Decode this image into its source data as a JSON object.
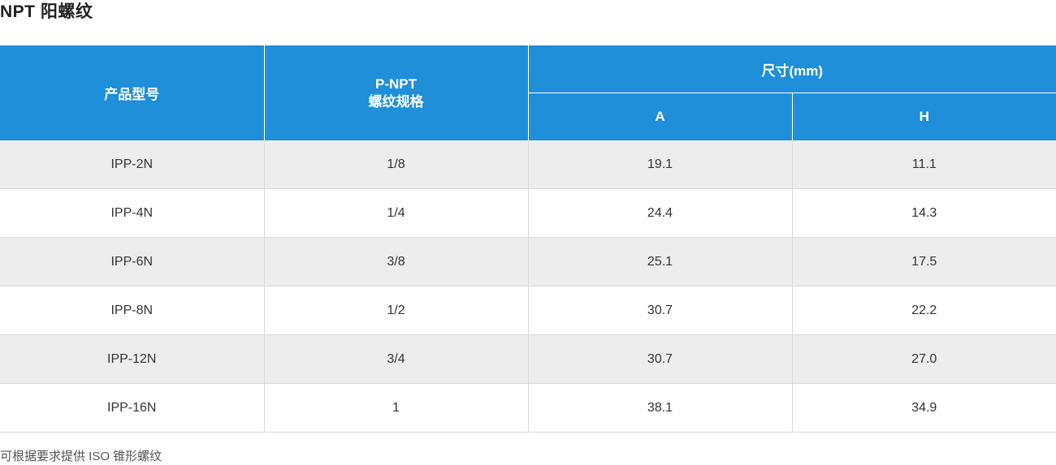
{
  "title": "NPT 阳螺纹",
  "table": {
    "headers": {
      "model": "产品型号",
      "thread_line1": "P-NPT",
      "thread_line2": "螺纹规格",
      "size": "尺寸(mm)",
      "a": "A",
      "h": "H"
    },
    "rows": [
      {
        "model": "IPP-2N",
        "thread": "1/8",
        "a": "19.1",
        "h": "11.1"
      },
      {
        "model": "IPP-4N",
        "thread": "1/4",
        "a": "24.4",
        "h": "14.3"
      },
      {
        "model": "IPP-6N",
        "thread": "3/8",
        "a": "25.1",
        "h": "17.5"
      },
      {
        "model": "IPP-8N",
        "thread": "1/2",
        "a": "30.7",
        "h": "22.2"
      },
      {
        "model": "IPP-12N",
        "thread": "3/4",
        "a": "30.7",
        "h": "27.0"
      },
      {
        "model": "IPP-16N",
        "thread": "1",
        "a": "38.1",
        "h": "34.9"
      }
    ]
  },
  "footnote": "可根据要求提供 ISO 锥形螺纹",
  "colors": {
    "header_bg": "#1e8fd8",
    "row_alt_bg": "#ededee"
  }
}
